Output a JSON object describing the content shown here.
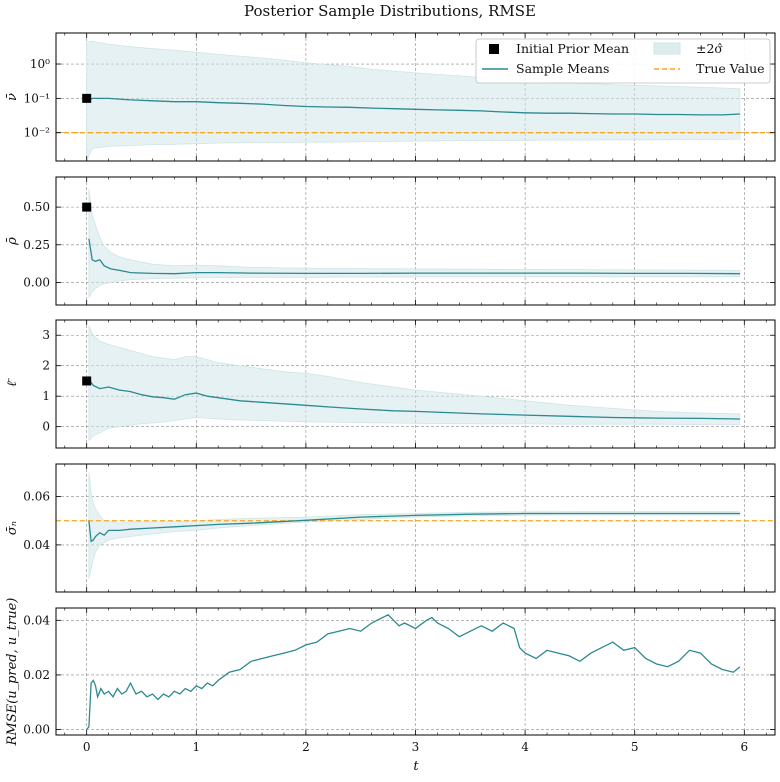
{
  "figure": {
    "title": "Posterior Sample Distributions, RMSE"
  },
  "colors": {
    "mean_line": "#2b8a8f",
    "band_fill": "#cfe6e7",
    "true_value": "#f5a623",
    "prior_marker": "#000000",
    "grid": "#8a8a8a"
  },
  "legend": {
    "prior": "Initial Prior Mean",
    "mean": "Sample Means",
    "band": "±2σ̂",
    "true": "True Value"
  },
  "x_axis": {
    "label": "t",
    "range": [
      -0.28,
      6.28
    ],
    "ticks": [
      0,
      1,
      2,
      3,
      4,
      5,
      6
    ],
    "tick_labels": [
      "0",
      "1",
      "2",
      "3",
      "4",
      "5",
      "6"
    ]
  },
  "chart_data": [
    {
      "type": "line",
      "name": "nu",
      "ylabel": "ν̄",
      "scale": "log",
      "ylim": [
        0.0015,
        8
      ],
      "yticks": [
        0.01,
        0.1,
        1
      ],
      "ytick_labels": [
        "10⁻²",
        "10⁻¹",
        "10⁰"
      ],
      "prior_mean": 0.1,
      "true_value": 0.01,
      "show_legend": true,
      "t": [
        0,
        0.05,
        0.2,
        0.4,
        0.6,
        0.8,
        1.0,
        1.2,
        1.4,
        1.6,
        1.8,
        2.0,
        2.2,
        2.4,
        2.6,
        2.8,
        3.0,
        3.2,
        3.4,
        3.6,
        3.8,
        4.0,
        4.2,
        4.4,
        4.6,
        4.8,
        5.0,
        5.2,
        5.4,
        5.6,
        5.8,
        5.96
      ],
      "mean": [
        0.08,
        0.1,
        0.1,
        0.09,
        0.085,
        0.08,
        0.08,
        0.075,
        0.072,
        0.068,
        0.062,
        0.058,
        0.056,
        0.055,
        0.052,
        0.05,
        0.048,
        0.046,
        0.045,
        0.043,
        0.04,
        0.038,
        0.037,
        0.037,
        0.036,
        0.035,
        0.035,
        0.034,
        0.034,
        0.033,
        0.033,
        0.035
      ],
      "upper": [
        4.5,
        4.6,
        3.8,
        3.2,
        2.8,
        2.5,
        2.2,
        1.9,
        1.7,
        1.5,
        1.3,
        1.1,
        0.95,
        0.85,
        0.7,
        0.62,
        0.55,
        0.5,
        0.45,
        0.4,
        0.36,
        0.33,
        0.3,
        0.28,
        0.27,
        0.25,
        0.24,
        0.23,
        0.22,
        0.21,
        0.2,
        0.19
      ],
      "lower": [
        0.0015,
        0.0035,
        0.004,
        0.0042,
        0.0045,
        0.0046,
        0.0048,
        0.005,
        0.0051,
        0.0052,
        0.0052,
        0.0053,
        0.0053,
        0.0054,
        0.0055,
        0.0056,
        0.0057,
        0.0058,
        0.0059,
        0.006,
        0.006,
        0.006,
        0.0061,
        0.0061,
        0.0061,
        0.0062,
        0.0062,
        0.0062,
        0.0063,
        0.0063,
        0.0064,
        0.0065
      ]
    },
    {
      "type": "line",
      "name": "rho",
      "ylabel": "ρ̄",
      "scale": "linear",
      "ylim": [
        -0.15,
        0.7
      ],
      "yticks": [
        0,
        0.25,
        0.5
      ],
      "ytick_labels": [
        "0.00",
        "0.25",
        "0.50"
      ],
      "prior_mean": 0.5,
      "true_value": null,
      "show_legend": false,
      "t": [
        0.02,
        0.05,
        0.08,
        0.12,
        0.16,
        0.22,
        0.3,
        0.4,
        0.6,
        0.8,
        1.0,
        1.2,
        1.5,
        2.0,
        2.5,
        3.0,
        3.5,
        4.0,
        4.5,
        5.0,
        5.5,
        5.96
      ],
      "mean": [
        0.29,
        0.15,
        0.14,
        0.15,
        0.11,
        0.09,
        0.08,
        0.065,
        0.06,
        0.058,
        0.065,
        0.065,
        0.062,
        0.06,
        0.06,
        0.062,
        0.062,
        0.062,
        0.062,
        0.06,
        0.06,
        0.058
      ],
      "upper": [
        0.62,
        0.45,
        0.38,
        0.3,
        0.24,
        0.2,
        0.17,
        0.15,
        0.12,
        0.11,
        0.115,
        0.11,
        0.1,
        0.095,
        0.092,
        0.09,
        0.088,
        0.086,
        0.085,
        0.083,
        0.082,
        0.08
      ],
      "lower": [
        -0.1,
        -0.06,
        -0.04,
        -0.02,
        -0.01,
        0.0,
        0.01,
        0.018,
        0.025,
        0.028,
        0.03,
        0.032,
        0.033,
        0.034,
        0.035,
        0.036,
        0.036,
        0.037,
        0.037,
        0.037,
        0.037,
        0.037
      ]
    },
    {
      "type": "line",
      "name": "ell",
      "ylabel": "ℓ̄",
      "scale": "linear",
      "ylim": [
        -0.7,
        3.5
      ],
      "yticks": [
        0,
        1,
        2,
        3
      ],
      "ytick_labels": [
        "0",
        "1",
        "2",
        "3"
      ],
      "prior_mean": 1.5,
      "true_value": null,
      "show_legend": false,
      "t": [
        0.02,
        0.06,
        0.12,
        0.2,
        0.3,
        0.4,
        0.5,
        0.6,
        0.7,
        0.8,
        0.9,
        1.0,
        1.1,
        1.2,
        1.4,
        1.6,
        1.8,
        2.0,
        2.2,
        2.5,
        2.8,
        3.0,
        3.3,
        3.6,
        4.0,
        4.4,
        4.8,
        5.2,
        5.6,
        5.96
      ],
      "mean": [
        1.55,
        1.35,
        1.25,
        1.3,
        1.2,
        1.15,
        1.05,
        0.98,
        0.95,
        0.9,
        1.05,
        1.1,
        1.0,
        0.95,
        0.85,
        0.8,
        0.75,
        0.7,
        0.65,
        0.58,
        0.52,
        0.5,
        0.46,
        0.42,
        0.38,
        0.34,
        0.3,
        0.28,
        0.27,
        0.25
      ],
      "upper": [
        3.3,
        3.0,
        2.8,
        2.7,
        2.6,
        2.5,
        2.4,
        2.3,
        2.25,
        2.2,
        2.3,
        2.3,
        2.2,
        2.1,
        2.0,
        1.9,
        1.8,
        1.75,
        1.65,
        1.45,
        1.3,
        1.2,
        1.1,
        1.0,
        0.85,
        0.7,
        0.6,
        0.5,
        0.45,
        0.42
      ],
      "lower": [
        -0.45,
        -0.3,
        -0.2,
        -0.05,
        0.0,
        0.05,
        0.1,
        0.12,
        0.15,
        0.2,
        0.25,
        0.3,
        0.28,
        0.25,
        0.22,
        0.2,
        0.18,
        0.16,
        0.15,
        0.13,
        0.12,
        0.11,
        0.1,
        0.09,
        0.09,
        0.08,
        0.08,
        0.08,
        0.07,
        0.07
      ]
    },
    {
      "type": "line",
      "name": "sigma_n",
      "ylabel": "σ̄ₙ",
      "scale": "linear",
      "ylim": [
        0.0205,
        0.0735
      ],
      "yticks": [
        0.04,
        0.06
      ],
      "ytick_labels": [
        "0.04",
        "0.06"
      ],
      "prior_mean": null,
      "true_value": 0.05,
      "show_legend": false,
      "t": [
        0.02,
        0.04,
        0.06,
        0.08,
        0.12,
        0.16,
        0.2,
        0.3,
        0.4,
        0.6,
        0.8,
        1.0,
        1.2,
        1.5,
        2.0,
        2.5,
        3.0,
        3.5,
        4.0,
        4.5,
        5.0,
        5.5,
        5.96
      ],
      "mean": [
        0.05,
        0.0415,
        0.042,
        0.0435,
        0.045,
        0.044,
        0.046,
        0.046,
        0.0465,
        0.047,
        0.0475,
        0.048,
        0.0485,
        0.049,
        0.0502,
        0.0515,
        0.0522,
        0.0527,
        0.053,
        0.053,
        0.053,
        0.053,
        0.053
      ],
      "upper": [
        0.07,
        0.062,
        0.057,
        0.055,
        0.052,
        0.05,
        0.05,
        0.049,
        0.0495,
        0.0495,
        0.0497,
        0.05,
        0.0505,
        0.051,
        0.0515,
        0.0525,
        0.053,
        0.0535,
        0.0537,
        0.0538,
        0.0538,
        0.0538,
        0.0538
      ],
      "lower": [
        0.026,
        0.03,
        0.034,
        0.037,
        0.04,
        0.041,
        0.042,
        0.043,
        0.0435,
        0.0445,
        0.0455,
        0.046,
        0.047,
        0.048,
        0.0495,
        0.0505,
        0.0515,
        0.052,
        0.0523,
        0.0524,
        0.0524,
        0.0524,
        0.0524
      ]
    },
    {
      "type": "line",
      "name": "rmse",
      "ylabel": "RMSE(u_pred, u_true)",
      "scale": "linear",
      "ylim": [
        -0.002,
        0.0445
      ],
      "yticks": [
        0,
        0.02,
        0.04
      ],
      "ytick_labels": [
        "0.00",
        "0.02",
        "0.04"
      ],
      "prior_mean": null,
      "true_value": null,
      "show_legend": false,
      "t": [
        0.0,
        0.02,
        0.04,
        0.06,
        0.08,
        0.1,
        0.13,
        0.16,
        0.2,
        0.24,
        0.28,
        0.32,
        0.36,
        0.4,
        0.45,
        0.5,
        0.55,
        0.6,
        0.65,
        0.7,
        0.75,
        0.8,
        0.85,
        0.9,
        0.95,
        1.0,
        1.05,
        1.1,
        1.15,
        1.2,
        1.3,
        1.4,
        1.5,
        1.6,
        1.7,
        1.8,
        1.9,
        2.0,
        2.1,
        2.2,
        2.3,
        2.4,
        2.5,
        2.6,
        2.7,
        2.75,
        2.8,
        2.85,
        2.9,
        3.0,
        3.1,
        3.15,
        3.2,
        3.3,
        3.4,
        3.5,
        3.6,
        3.7,
        3.8,
        3.9,
        3.95,
        4.0,
        4.1,
        4.2,
        4.3,
        4.4,
        4.5,
        4.6,
        4.7,
        4.8,
        4.9,
        5.0,
        5.1,
        5.2,
        5.3,
        5.4,
        5.5,
        5.6,
        5.7,
        5.8,
        5.9,
        5.96
      ],
      "values": [
        0.0,
        0.001,
        0.017,
        0.018,
        0.016,
        0.012,
        0.015,
        0.013,
        0.014,
        0.012,
        0.015,
        0.013,
        0.014,
        0.017,
        0.013,
        0.014,
        0.012,
        0.013,
        0.011,
        0.013,
        0.012,
        0.014,
        0.013,
        0.015,
        0.014,
        0.016,
        0.015,
        0.017,
        0.016,
        0.018,
        0.021,
        0.022,
        0.025,
        0.026,
        0.027,
        0.028,
        0.029,
        0.031,
        0.032,
        0.035,
        0.036,
        0.037,
        0.036,
        0.039,
        0.041,
        0.042,
        0.04,
        0.038,
        0.039,
        0.037,
        0.04,
        0.041,
        0.039,
        0.037,
        0.034,
        0.036,
        0.038,
        0.036,
        0.039,
        0.037,
        0.03,
        0.028,
        0.026,
        0.029,
        0.028,
        0.027,
        0.025,
        0.028,
        0.03,
        0.032,
        0.029,
        0.03,
        0.026,
        0.024,
        0.023,
        0.025,
        0.029,
        0.028,
        0.024,
        0.022,
        0.021,
        0.023
      ]
    }
  ]
}
